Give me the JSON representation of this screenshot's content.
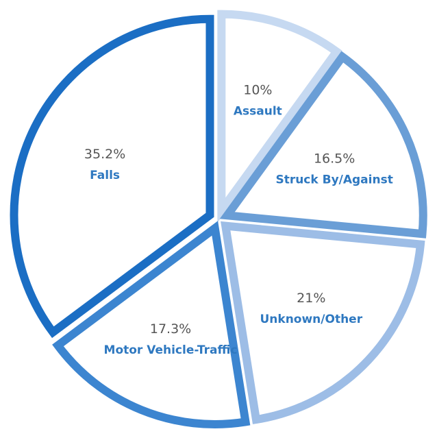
{
  "chart_data": {
    "type": "pie",
    "slices": [
      {
        "label": "Assault",
        "value": 10,
        "value_label": "10%",
        "color": "#c6d9f1",
        "text_color": "#2e78c0"
      },
      {
        "label": "Struck By/Against",
        "value": 16.5,
        "value_label": "16.5%",
        "color": "#6a9ed6",
        "text_color": "#2e78c0"
      },
      {
        "label": "Unknown/Other",
        "value": 21,
        "value_label": "21%",
        "color": "#9dbde6",
        "text_color": "#2e78c0"
      },
      {
        "label": "Motor Vehicle-Traffic",
        "value": 17.3,
        "value_label": "17.3%",
        "color": "#3c85d0",
        "text_color": "#2e78c0"
      },
      {
        "label": "Falls",
        "value": 35.2,
        "value_label": "35.2%",
        "color": "#1b6ec4",
        "text_color": "#2e78c0"
      }
    ]
  }
}
